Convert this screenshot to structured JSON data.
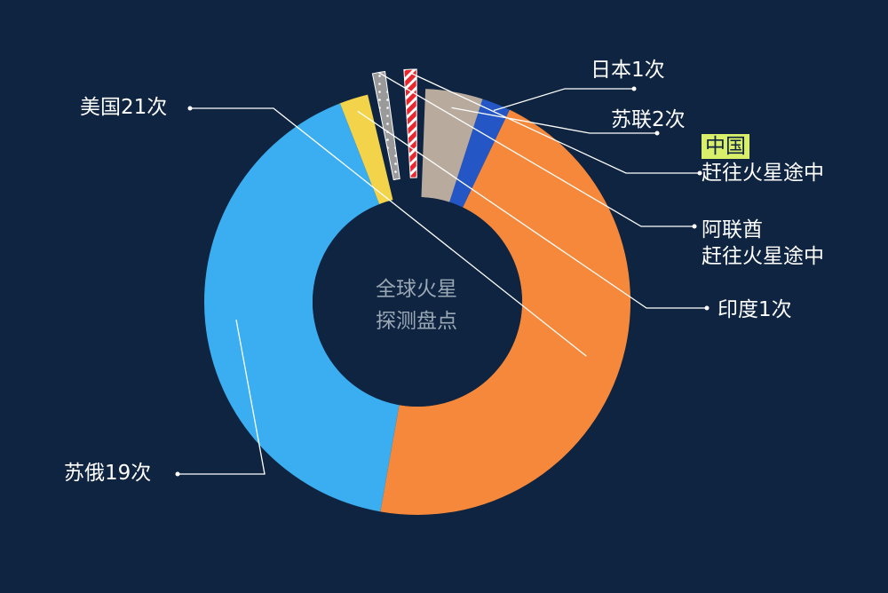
{
  "chart_data": {
    "type": "pie",
    "variant": "donut",
    "center_text": [
      "全球火星",
      "探测盘点"
    ],
    "slices": [
      {
        "label": "美国21次",
        "value": 21,
        "color": "#f5883a"
      },
      {
        "label": "日本1次",
        "value": 1,
        "color": "#2457c5"
      },
      {
        "label": "苏联2次",
        "value": 2,
        "color": "#b8aa9c"
      },
      {
        "label": "中国赶往火星途中",
        "label_lines": [
          "中国",
          "赶往火星途中"
        ],
        "value": 1,
        "color": "#e8282e",
        "pattern": "stripes",
        "exploded": true,
        "highlight": "中国"
      },
      {
        "label": "阿联酋赶往火星途中",
        "label_lines": [
          "阿联酋",
          "赶往火星途中"
        ],
        "value": 1,
        "color": "#c8c8c8",
        "pattern": "dots",
        "exploded": true
      },
      {
        "label": "印度1次",
        "value": 1,
        "color": "#f3d34a"
      },
      {
        "label": "苏俄19次",
        "value": 19,
        "color": "#3aaef0"
      }
    ]
  }
}
